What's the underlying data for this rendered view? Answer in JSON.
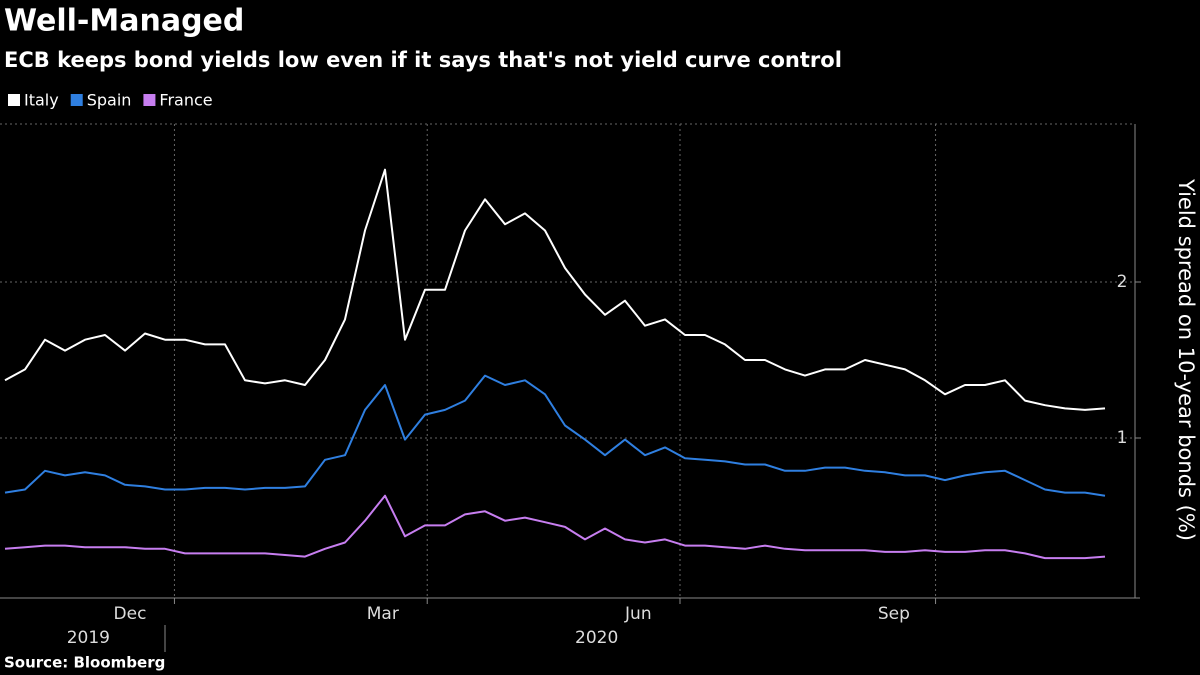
{
  "chart_data": {
    "type": "line",
    "title": "Well-Managed",
    "subtitle": "ECB keeps bond yields low even if it says that's not yield curve control",
    "y_label": "Yield spread on 10-year bonds (%)",
    "source": "Source: Bloomberg",
    "xlim": [
      "2019-11",
      "2020-12"
    ],
    "xticks": [
      {
        "value": "2019-12",
        "label": "Dec"
      },
      {
        "value": "2020-03",
        "label": "Mar"
      },
      {
        "value": "2020-06",
        "label": "Jun"
      },
      {
        "value": "2020-09",
        "label": "Sep"
      }
    ],
    "xgrid": [
      "2020-01",
      "2020-04",
      "2020-07",
      "2020-10"
    ],
    "years": [
      {
        "value": "2019-12",
        "label": "2019"
      },
      {
        "value": "2020-06",
        "label": "2020"
      }
    ],
    "ylim": [
      0,
      3
    ],
    "yticks": [
      1,
      2
    ],
    "grid": true,
    "legend": "top-left",
    "series": [
      {
        "name": "Italy",
        "color": "#ffffff",
        "values": [
          1.37,
          1.44,
          1.63,
          1.56,
          1.63,
          1.66,
          1.56,
          1.67,
          1.63,
          1.63,
          1.6,
          1.6,
          1.37,
          1.35,
          1.37,
          1.34,
          1.5,
          1.76,
          2.33,
          2.72,
          1.63,
          1.95,
          1.95,
          2.33,
          2.53,
          2.37,
          2.44,
          2.33,
          2.09,
          1.92,
          1.79,
          1.88,
          1.72,
          1.76,
          1.66,
          1.66,
          1.6,
          1.5,
          1.5,
          1.44,
          1.4,
          1.44,
          1.44,
          1.5,
          1.47,
          1.44,
          1.37,
          1.28,
          1.34,
          1.34,
          1.37,
          1.24,
          1.21,
          1.19,
          1.18,
          1.19
        ]
      },
      {
        "name": "Spain",
        "color": "#2f7fe0",
        "values": [
          0.65,
          0.67,
          0.79,
          0.76,
          0.78,
          0.76,
          0.7,
          0.69,
          0.67,
          0.67,
          0.68,
          0.68,
          0.67,
          0.68,
          0.68,
          0.69,
          0.86,
          0.89,
          1.18,
          1.34,
          0.99,
          1.15,
          1.18,
          1.24,
          1.4,
          1.34,
          1.37,
          1.28,
          1.08,
          0.99,
          0.89,
          0.99,
          0.89,
          0.94,
          0.87,
          0.86,
          0.85,
          0.83,
          0.83,
          0.79,
          0.79,
          0.81,
          0.81,
          0.79,
          0.78,
          0.76,
          0.76,
          0.73,
          0.76,
          0.78,
          0.79,
          0.73,
          0.67,
          0.65,
          0.65,
          0.63
        ]
      },
      {
        "name": "France",
        "color": "#c77ef0",
        "values": [
          0.29,
          0.3,
          0.31,
          0.31,
          0.3,
          0.3,
          0.3,
          0.29,
          0.29,
          0.26,
          0.26,
          0.26,
          0.26,
          0.26,
          0.25,
          0.24,
          0.29,
          0.33,
          0.47,
          0.63,
          0.37,
          0.44,
          0.44,
          0.51,
          0.53,
          0.47,
          0.49,
          0.46,
          0.43,
          0.35,
          0.42,
          0.35,
          0.33,
          0.35,
          0.31,
          0.31,
          0.3,
          0.29,
          0.31,
          0.29,
          0.28,
          0.28,
          0.28,
          0.28,
          0.27,
          0.27,
          0.28,
          0.27,
          0.27,
          0.28,
          0.28,
          0.26,
          0.23,
          0.23,
          0.23,
          0.24
        ]
      }
    ]
  }
}
